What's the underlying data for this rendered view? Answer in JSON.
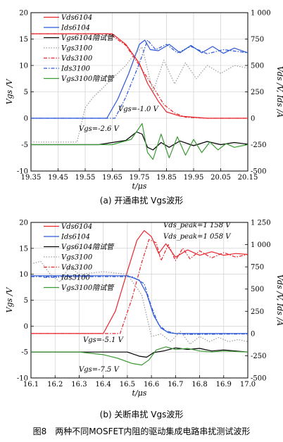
{
  "colors": {
    "red": "#e8252b",
    "blue": "#2a57d6",
    "black": "#000000",
    "gray": "#9a9a9a",
    "green": "#3c9a35",
    "darkred": "#cc1f1f"
  },
  "chart_data": [
    {
      "type": "line",
      "caption": "(a) 开通串扰 Vgs波形",
      "xlabel": "t/μs",
      "ylabel_left": "Vgs /V",
      "ylabel_right": "Vds /V, Ids /A",
      "xlim": [
        19.35,
        20.15
      ],
      "ylim_left": [
        -10,
        20
      ],
      "ylim_right": [
        -500,
        1000
      ],
      "x_ticks": [
        "19.35",
        "19.45",
        "19.55",
        "19.65",
        "19.75",
        "19.85",
        "19.95",
        "20.05",
        "20.15"
      ],
      "y_ticks_left": [
        "-10",
        "-5",
        "0",
        "5",
        "10",
        "15",
        "20"
      ],
      "y_ticks_right": [
        "-500",
        "-250",
        "0",
        "250",
        "500",
        "750",
        "1 000"
      ],
      "legend": [
        {
          "label": "Vds6104",
          "color": "#e8252b",
          "dash": "solid"
        },
        {
          "label": "Ids6104",
          "color": "#2a57d6",
          "dash": "solid"
        },
        {
          "label": "Vgs6104陪试管",
          "color": "#000000",
          "dash": "solid"
        },
        {
          "label": "Vgs3100",
          "color": "#9a9a9a",
          "dash": "dotted"
        },
        {
          "label": "Vds3100",
          "color": "#e8252b",
          "dash": "dashdot"
        },
        {
          "label": "Ids3100",
          "color": "#2a57d6",
          "dash": "dashdot"
        },
        {
          "label": "Vgs3100陪试管",
          "color": "#3c9a35",
          "dash": "solid"
        }
      ],
      "annotations": [
        "Vgs=-1.0 V",
        "Vgs=-2.6 V"
      ],
      "series": [
        {
          "name": "Vds6104",
          "axis": "right",
          "color": "#e8252b",
          "dash": "solid",
          "x": [
            19.35,
            19.65,
            19.7,
            19.75,
            19.78,
            19.82,
            19.85,
            19.9,
            20.0,
            20.15
          ],
          "y": [
            800,
            800,
            700,
            520,
            330,
            160,
            60,
            20,
            0,
            0
          ]
        },
        {
          "name": "Ids6104",
          "axis": "right",
          "color": "#2a57d6",
          "dash": "solid",
          "x": [
            19.35,
            19.63,
            19.67,
            19.71,
            19.75,
            19.77,
            19.79,
            19.82,
            19.86,
            19.9,
            19.94,
            19.98,
            20.02,
            20.06,
            20.1,
            20.15
          ],
          "y": [
            0,
            0,
            180,
            420,
            700,
            740,
            650,
            640,
            700,
            620,
            690,
            620,
            680,
            615,
            665,
            620
          ]
        },
        {
          "name": "Vds3100",
          "axis": "right",
          "color": "#e8252b",
          "dash": "dashdot",
          "x": [
            19.35,
            19.64,
            19.7,
            19.75,
            19.8,
            19.84,
            19.88,
            19.92,
            20.0,
            20.15
          ],
          "y": [
            800,
            800,
            690,
            500,
            300,
            130,
            50,
            10,
            0,
            0
          ]
        },
        {
          "name": "Ids3100",
          "axis": "right",
          "color": "#2a57d6",
          "dash": "dashdot",
          "x": [
            19.35,
            19.66,
            19.7,
            19.75,
            19.78,
            19.81,
            19.85,
            19.89,
            19.94,
            20.0,
            20.06,
            20.15
          ],
          "y": [
            0,
            0,
            200,
            520,
            740,
            650,
            700,
            620,
            680,
            610,
            650,
            620
          ]
        },
        {
          "name": "Vgs3100",
          "axis": "left",
          "color": "#9a9a9a",
          "dash": "dotted",
          "x": [
            19.35,
            19.52,
            19.55,
            19.58,
            19.62,
            19.66,
            19.7,
            19.73,
            19.76,
            19.8,
            19.84,
            19.88,
            19.92,
            19.96,
            20.0,
            20.05,
            20.1,
            20.15
          ],
          "y": [
            -4.5,
            -4.5,
            2.0,
            4.0,
            6.0,
            8.0,
            10.0,
            12.0,
            13.5,
            5.0,
            11.0,
            6.5,
            10.5,
            7.5,
            10.0,
            8.5,
            10.0,
            9.5
          ]
        },
        {
          "name": "Vgs6104陪试管",
          "axis": "left",
          "color": "#000000",
          "dash": "solid",
          "x": [
            19.35,
            19.6,
            19.7,
            19.74,
            19.76,
            19.78,
            19.8,
            19.83,
            19.86,
            19.9,
            19.95,
            20.0,
            20.05,
            20.1,
            20.15
          ],
          "y": [
            -5.0,
            -5.0,
            -4.2,
            -2.6,
            -3.0,
            -5.5,
            -6.0,
            -4.6,
            -5.5,
            -4.3,
            -5.2,
            -4.4,
            -5.0,
            -4.6,
            -4.9
          ]
        },
        {
          "name": "Vgs3100陪试管",
          "axis": "left",
          "color": "#3c9a35",
          "dash": "solid",
          "x": [
            19.35,
            19.65,
            19.72,
            19.76,
            19.78,
            19.8,
            19.83,
            19.86,
            19.89,
            19.92,
            19.95,
            19.98,
            20.01,
            20.04,
            20.07,
            20.1,
            20.15
          ],
          "y": [
            -5.0,
            -5.0,
            -4.0,
            -1.0,
            -6.5,
            -7.8,
            -3.0,
            -7.5,
            -3.5,
            -7.0,
            -4.0,
            -6.5,
            -4.5,
            -6.0,
            -4.8,
            -5.5,
            -5.0
          ]
        }
      ]
    },
    {
      "type": "line",
      "caption": "(b) 关断串扰 Vgs波形",
      "xlabel": "t/μs",
      "ylabel_left": "Vgs /V",
      "ylabel_right": "Vds /V, Ids /A",
      "xlim": [
        16.1,
        17.0
      ],
      "ylim_left": [
        -10,
        20
      ],
      "ylim_right": [
        -500,
        1250
      ],
      "x_ticks": [
        "16.1",
        "16.2",
        "16.3",
        "16.4",
        "16.5",
        "16.6",
        "16.7",
        "16.8",
        "16.9",
        "17.0"
      ],
      "y_ticks_left": [
        "-10",
        "-5",
        "0",
        "5",
        "10",
        "15",
        "20"
      ],
      "y_ticks_right": [
        "-500",
        "-250",
        "0",
        "250",
        "500",
        "750",
        "1 000",
        "1 250"
      ],
      "legend": [
        {
          "label": "Vds6104",
          "color": "#e8252b",
          "dash": "solid"
        },
        {
          "label": "Ids6104",
          "color": "#2a57d6",
          "dash": "solid"
        },
        {
          "label": "Vgs6104陪试管",
          "color": "#000000",
          "dash": "solid"
        },
        {
          "label": "Vgs3100",
          "color": "#9a9a9a",
          "dash": "dotted"
        },
        {
          "label": "Vds3100",
          "color": "#e8252b",
          "dash": "dashdot"
        },
        {
          "label": "Ids3100",
          "color": "#2a57d6",
          "dash": "dashdot"
        },
        {
          "label": "Vgs3100陪试管",
          "color": "#3c9a35",
          "dash": "solid"
        }
      ],
      "annotations": [
        "Vds_peak=1 158 V",
        "Vds_peak=1 058 V",
        "Vgs=-5.1 V",
        "Vgs=-7.5 V"
      ],
      "series": [
        {
          "name": "Vds6104",
          "axis": "right",
          "color": "#e8252b",
          "dash": "solid",
          "x": [
            16.1,
            16.4,
            16.45,
            16.5,
            16.54,
            16.57,
            16.6,
            16.63,
            16.66,
            16.7,
            16.75,
            16.8,
            16.85,
            16.9,
            16.95,
            17.0
          ],
          "y": [
            0,
            0,
            250,
            700,
            1050,
            1158,
            1090,
            900,
            1010,
            860,
            940,
            880,
            920,
            880,
            900,
            890
          ]
        },
        {
          "name": "Vds3100",
          "axis": "right",
          "color": "#e8252b",
          "dash": "dashdot",
          "x": [
            16.1,
            16.47,
            16.52,
            16.56,
            16.59,
            16.62,
            16.64,
            16.67,
            16.7,
            16.73,
            16.76,
            16.8,
            16.85,
            16.9,
            16.95,
            17.0
          ],
          "y": [
            0,
            0,
            400,
            800,
            1058,
            1020,
            820,
            1000,
            820,
            960,
            840,
            930,
            850,
            910,
            860,
            890
          ]
        },
        {
          "name": "Ids6104",
          "axis": "right",
          "color": "#2a57d6",
          "dash": "solid",
          "x": [
            16.1,
            16.5,
            16.55,
            16.58,
            16.61,
            16.64,
            16.67,
            16.7,
            16.75,
            17.0
          ],
          "y": [
            650,
            650,
            600,
            450,
            200,
            60,
            10,
            0,
            0,
            0
          ]
        },
        {
          "name": "Ids3100",
          "axis": "right",
          "color": "#2a57d6",
          "dash": "dashdot",
          "x": [
            16.1,
            16.52,
            16.57,
            16.6,
            16.63,
            16.66,
            16.7,
            16.75,
            17.0
          ],
          "y": [
            640,
            640,
            560,
            300,
            100,
            30,
            0,
            -10,
            -5
          ]
        },
        {
          "name": "Vgs3100",
          "axis": "left",
          "color": "#9a9a9a",
          "dash": "dotted",
          "x": [
            16.1,
            16.14,
            16.18,
            16.22,
            16.26,
            16.3,
            16.4,
            16.5,
            16.56,
            16.6,
            16.64,
            16.68,
            16.72,
            16.76,
            16.8,
            16.84,
            16.88,
            16.92,
            16.96,
            17.0
          ],
          "y": [
            12.0,
            12.5,
            10.0,
            8.5,
            11.5,
            10.0,
            10.5,
            10.0,
            6.0,
            -2.0,
            -1.5,
            -3.0,
            -1.0,
            -3.5,
            -2.0,
            -3.0,
            -2.2,
            -3.0,
            -2.6,
            -3.0
          ]
        },
        {
          "name": "Vgs6104陪试管",
          "axis": "left",
          "color": "#000000",
          "dash": "solid",
          "x": [
            16.1,
            16.4,
            16.5,
            16.55,
            16.58,
            16.61,
            16.65,
            16.7,
            16.75,
            16.8,
            16.85,
            16.9,
            17.0
          ],
          "y": [
            -5.0,
            -5.0,
            -5.0,
            -5.8,
            -6.0,
            -5.1,
            -4.8,
            -4.2,
            -4.5,
            -4.3,
            -4.8,
            -4.6,
            -5.0
          ]
        },
        {
          "name": "Vgs3100陪试管",
          "axis": "left",
          "color": "#3c9a35",
          "dash": "solid",
          "x": [
            16.1,
            16.3,
            16.4,
            16.46,
            16.52,
            16.56,
            16.59,
            16.62,
            16.66,
            16.7,
            16.75,
            16.8,
            16.85,
            16.9,
            17.0
          ],
          "y": [
            -5.0,
            -5.0,
            -5.5,
            -6.2,
            -7.2,
            -7.5,
            -6.5,
            -4.6,
            -4.0,
            -4.5,
            -4.3,
            -4.8,
            -5.0,
            -4.8,
            -5.0
          ]
        }
      ]
    }
  ],
  "figure_caption": "图8　两种不同MOSFET内阻的驱动集成电路串扰测试波形"
}
